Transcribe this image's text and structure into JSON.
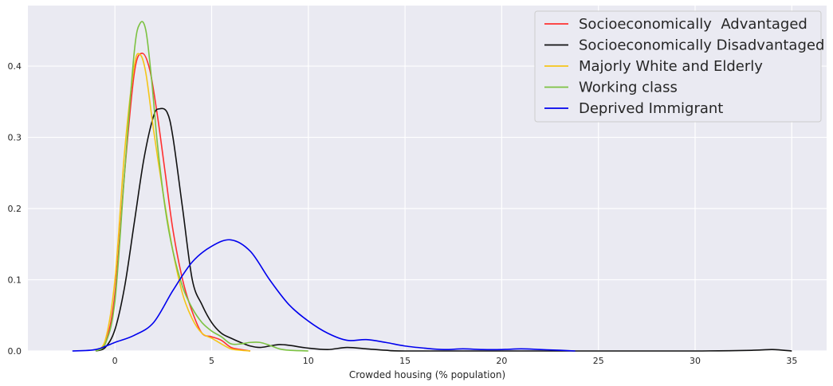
{
  "chart_data": {
    "type": "line",
    "title": "",
    "xlabel": "Crowded housing (% population)",
    "ylabel": "",
    "xlim": [
      -4.5,
      36.8
    ],
    "ylim": [
      0,
      0.485
    ],
    "xticks": [
      0,
      5,
      10,
      15,
      20,
      25,
      30,
      35
    ],
    "yticks": [
      0.0,
      0.1,
      0.2,
      0.3,
      0.4
    ],
    "grid": true,
    "legend_position": "top-right",
    "colors": {
      "background": "#eaeaf2",
      "grid": "#ffffff"
    },
    "series": [
      {
        "name": "Socioeconomically  Advantaged",
        "color": "#ff3030",
        "x": [
          -1.0,
          -0.5,
          0.0,
          0.5,
          1.0,
          1.4,
          1.8,
          2.2,
          2.6,
          3.0,
          3.5,
          4.0,
          4.5,
          5.0,
          5.5,
          6.0,
          6.5,
          7.0
        ],
        "y": [
          0.0,
          0.01,
          0.08,
          0.25,
          0.39,
          0.418,
          0.395,
          0.33,
          0.25,
          0.17,
          0.1,
          0.055,
          0.025,
          0.02,
          0.015,
          0.005,
          0.002,
          0.0
        ]
      },
      {
        "name": "Socioeconomically Disadvantaged",
        "color": "#111111",
        "x": [
          -1.0,
          -0.5,
          0.0,
          0.5,
          1.0,
          1.5,
          2.0,
          2.3,
          2.7,
          3.0,
          3.5,
          4.0,
          4.5,
          5.0,
          5.5,
          6.0,
          6.5,
          7.0,
          7.5,
          8.0,
          8.5,
          9.0,
          10.0,
          11.0,
          12.0,
          13.0,
          14.0,
          15.0,
          20.0,
          25.0,
          30.0,
          33.0,
          34.0,
          35.0
        ],
        "y": [
          0.0,
          0.005,
          0.03,
          0.09,
          0.18,
          0.27,
          0.33,
          0.34,
          0.335,
          0.3,
          0.2,
          0.1,
          0.065,
          0.04,
          0.025,
          0.018,
          0.012,
          0.007,
          0.005,
          0.007,
          0.009,
          0.008,
          0.004,
          0.002,
          0.005,
          0.003,
          0.001,
          0.0,
          0.0,
          0.0,
          0.0,
          0.001,
          0.002,
          0.0
        ]
      },
      {
        "name": "Majorly White and Elderly",
        "color": "#f5c518",
        "x": [
          -1.0,
          -0.5,
          0.0,
          0.5,
          1.0,
          1.3,
          1.6,
          2.0,
          2.5,
          3.0,
          3.5,
          4.0,
          4.5,
          5.0,
          5.5,
          6.0,
          6.5,
          7.0
        ],
        "y": [
          0.0,
          0.015,
          0.1,
          0.28,
          0.4,
          0.416,
          0.39,
          0.31,
          0.22,
          0.14,
          0.08,
          0.045,
          0.025,
          0.018,
          0.01,
          0.003,
          0.001,
          0.0
        ]
      },
      {
        "name": "Working class",
        "color": "#7cc242",
        "x": [
          -1.0,
          -0.5,
          0.0,
          0.5,
          1.0,
          1.3,
          1.6,
          1.9,
          2.2,
          2.6,
          3.0,
          3.5,
          4.0,
          4.5,
          5.0,
          5.5,
          6.0,
          6.5,
          7.0,
          7.5,
          8.0,
          8.5,
          9.0,
          10.0
        ],
        "y": [
          0.0,
          0.01,
          0.07,
          0.25,
          0.42,
          0.46,
          0.45,
          0.38,
          0.29,
          0.2,
          0.14,
          0.09,
          0.06,
          0.04,
          0.028,
          0.02,
          0.01,
          0.01,
          0.012,
          0.012,
          0.008,
          0.003,
          0.001,
          0.0
        ]
      },
      {
        "name": "Deprived Immigrant",
        "color": "#0000ee",
        "x": [
          -2.2,
          -1.0,
          0.0,
          1.0,
          2.0,
          3.0,
          4.0,
          5.0,
          6.0,
          7.0,
          8.0,
          9.0,
          10.0,
          11.0,
          12.0,
          13.0,
          14.0,
          15.0,
          16.0,
          17.0,
          18.0,
          19.0,
          20.0,
          21.0,
          22.0,
          23.0,
          23.8
        ],
        "y": [
          0.0,
          0.002,
          0.012,
          0.022,
          0.04,
          0.085,
          0.125,
          0.147,
          0.156,
          0.14,
          0.1,
          0.065,
          0.042,
          0.025,
          0.015,
          0.016,
          0.012,
          0.007,
          0.004,
          0.002,
          0.003,
          0.002,
          0.002,
          0.003,
          0.002,
          0.001,
          0.0
        ]
      }
    ]
  }
}
